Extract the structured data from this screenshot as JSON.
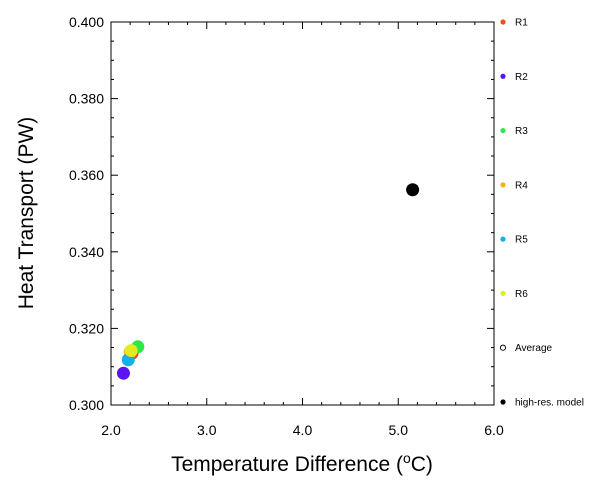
{
  "chart_data": {
    "type": "scatter",
    "title": "",
    "xlabel": "Temperature Difference (",
    "xlabel_unit_sup": "o",
    "xlabel_unit": "C)",
    "ylabel": "Heat Transport (PW)",
    "xlim": [
      2.0,
      6.0
    ],
    "ylim": [
      0.3,
      0.4
    ],
    "xticks": [
      "2.0",
      "3.0",
      "4.0",
      "5.0",
      "6.0"
    ],
    "yticks": [
      "0.300",
      "0.320",
      "0.340",
      "0.360",
      "0.380",
      "0.400"
    ],
    "grid": false,
    "legend_position": "right",
    "series": [
      {
        "name": "R1",
        "color": "#e8531c",
        "filled": true,
        "points": [
          [
            2.22,
            0.3135
          ]
        ]
      },
      {
        "name": "R2",
        "color": "#5b14f0",
        "filled": true,
        "points": [
          [
            2.13,
            0.3083
          ]
        ]
      },
      {
        "name": "R3",
        "color": "#2ee84a",
        "filled": true,
        "points": [
          [
            2.28,
            0.3152
          ]
        ]
      },
      {
        "name": "R4",
        "color": "#f7b21a",
        "filled": true,
        "points": [
          [
            2.2,
            0.3138
          ]
        ]
      },
      {
        "name": "R5",
        "color": "#13b2e6",
        "filled": true,
        "points": [
          [
            2.18,
            0.3118
          ]
        ]
      },
      {
        "name": "R6",
        "color": "#e2ec1c",
        "filled": true,
        "points": [
          [
            2.21,
            0.3142
          ]
        ]
      },
      {
        "name": "Average",
        "color": "#000000",
        "filled": false,
        "points": []
      },
      {
        "name": "high-res. model",
        "color": "#000000",
        "filled": true,
        "points": [
          [
            5.15,
            0.3562
          ]
        ]
      }
    ]
  }
}
